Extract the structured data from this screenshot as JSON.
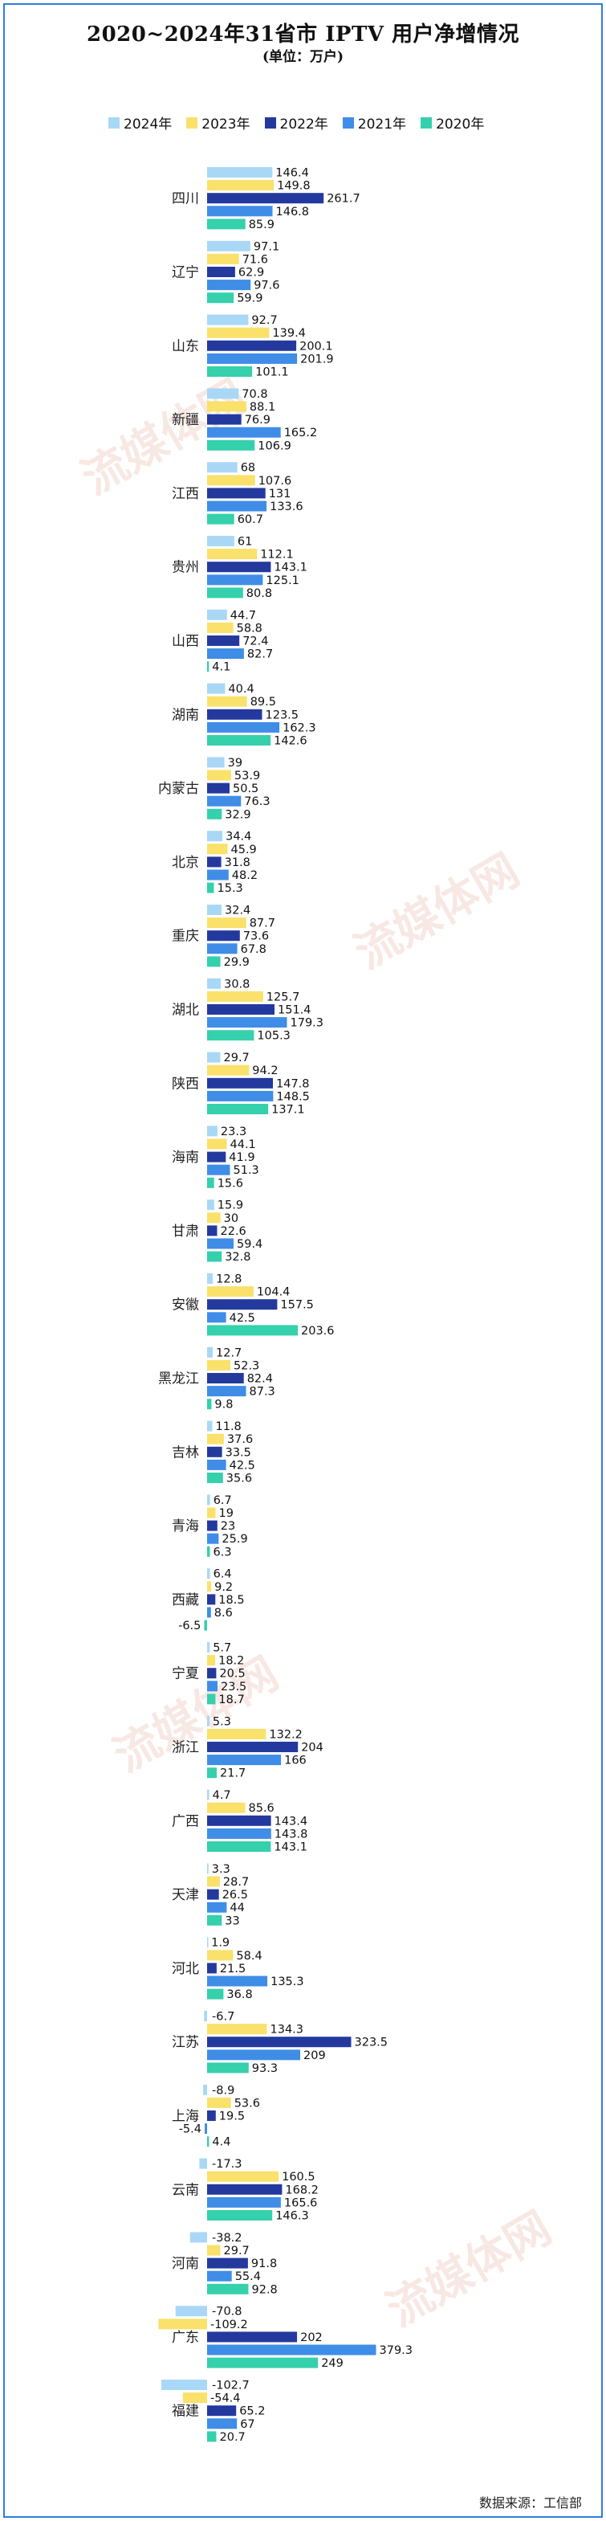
{
  "title": "2020~2024年31省市 IPTV 用户净增情况",
  "subtitle": "(单位：万户)",
  "source": "数据来源：工信部",
  "watermark": "流媒体网",
  "watermark_url": "www.lmtw.com",
  "colors": {
    "2024": "#a9d8f6",
    "2023": "#f9e16b",
    "2022": "#24399e",
    "2021": "#3f8de6",
    "2020": "#35d0ac"
  },
  "chart_data": {
    "type": "bar",
    "orientation": "horizontal",
    "title": "2020~2024年31省市 IPTV 用户净增情况",
    "unit": "万户",
    "legend_position": "top",
    "categories": [
      "四川",
      "辽宁",
      "山东",
      "新疆",
      "江西",
      "贵州",
      "山西",
      "湖南",
      "内蒙古",
      "北京",
      "重庆",
      "湖北",
      "陕西",
      "海南",
      "甘肃",
      "安徽",
      "黑龙江",
      "吉林",
      "青海",
      "西藏",
      "宁夏",
      "浙江",
      "广西",
      "天津",
      "河北",
      "江苏",
      "上海",
      "云南",
      "河南",
      "广东",
      "福建"
    ],
    "series": [
      {
        "name": "2024年",
        "values": [
          146.4,
          97.1,
          92.7,
          70.8,
          68,
          61,
          44.7,
          40.4,
          39,
          34.4,
          32.4,
          30.8,
          29.7,
          23.3,
          15.9,
          12.8,
          12.7,
          11.8,
          6.7,
          6.4,
          5.7,
          5.3,
          4.7,
          3.3,
          1.9,
          -6.7,
          -8.9,
          -17.3,
          -38.2,
          -70.8,
          -102.7
        ]
      },
      {
        "name": "2023年",
        "values": [
          149.8,
          71.6,
          139.4,
          88.1,
          107.6,
          112.1,
          58.8,
          89.5,
          53.9,
          45.9,
          87.7,
          125.7,
          94.2,
          44.1,
          30,
          104.4,
          52.3,
          37.6,
          19,
          9.2,
          18.2,
          132.2,
          85.6,
          28.7,
          58.4,
          134.3,
          53.6,
          160.5,
          29.7,
          -109.2,
          -54.4
        ]
      },
      {
        "name": "2022年",
        "values": [
          261.7,
          62.9,
          200.1,
          76.9,
          131,
          143.1,
          72.4,
          123.5,
          50.5,
          31.8,
          73.6,
          151.4,
          147.8,
          41.9,
          22.6,
          157.5,
          82.4,
          33.5,
          23,
          18.5,
          20.5,
          204,
          143.4,
          26.5,
          21.5,
          323.5,
          19.5,
          168.2,
          91.8,
          202,
          65.2
        ]
      },
      {
        "name": "2021年",
        "values": [
          146.8,
          97.6,
          201.9,
          165.2,
          133.6,
          125.1,
          82.7,
          162.3,
          76.3,
          48.2,
          67.8,
          179.3,
          148.5,
          51.3,
          59.4,
          42.5,
          87.3,
          42.5,
          25.9,
          8.6,
          23.5,
          166,
          143.8,
          44,
          135.3,
          209,
          -5.4,
          165.6,
          55.4,
          379.3,
          67
        ]
      },
      {
        "name": "2020年",
        "values": [
          85.9,
          59.9,
          101.1,
          106.9,
          60.7,
          80.8,
          4.1,
          142.6,
          32.9,
          15.3,
          29.9,
          105.3,
          137.1,
          15.6,
          32.8,
          203.6,
          9.8,
          35.6,
          6.3,
          -6.5,
          18.7,
          21.7,
          143.1,
          33,
          36.8,
          93.3,
          4.4,
          146.3,
          92.8,
          249,
          20.7
        ]
      }
    ]
  }
}
